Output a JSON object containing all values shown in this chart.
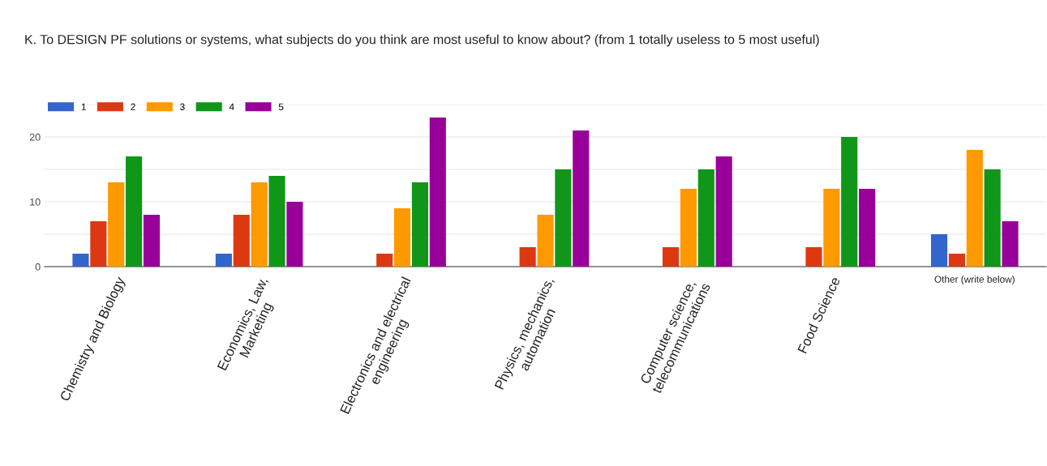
{
  "chart_data": {
    "type": "bar",
    "title": "K. To DESIGN PF solutions or systems, what subjects do you think are most useful to know about? (from 1 totally useless to 5 most useful)",
    "categories": [
      "Chemistry and Biology",
      "Economics, Law,\nMarketing",
      "Electronics and electrical\nengineering",
      "Physics, mechanics,\nautomation",
      "Computer science,\ntelecommunications",
      "Food Science",
      "Other (write below)"
    ],
    "series": [
      {
        "name": "1",
        "color": "#3366cc",
        "values": [
          2,
          2,
          0,
          0,
          0,
          0,
          5
        ]
      },
      {
        "name": "2",
        "color": "#dc3912",
        "values": [
          7,
          8,
          2,
          3,
          3,
          3,
          2
        ]
      },
      {
        "name": "3",
        "color": "#ff9900",
        "values": [
          13,
          13,
          9,
          8,
          12,
          12,
          18
        ]
      },
      {
        "name": "4",
        "color": "#109618",
        "values": [
          17,
          14,
          13,
          15,
          15,
          20,
          15
        ]
      },
      {
        "name": "5",
        "color": "#990099",
        "values": [
          8,
          10,
          23,
          21,
          17,
          12,
          7
        ]
      }
    ],
    "ylim": [
      0,
      25
    ],
    "yticks": [
      0,
      {
        "value": 5,
        "label": null
      },
      10,
      {
        "value": 15,
        "label": null
      },
      20,
      {
        "value": 25,
        "label": null
      }
    ],
    "grid": "y",
    "legend": "top left"
  }
}
